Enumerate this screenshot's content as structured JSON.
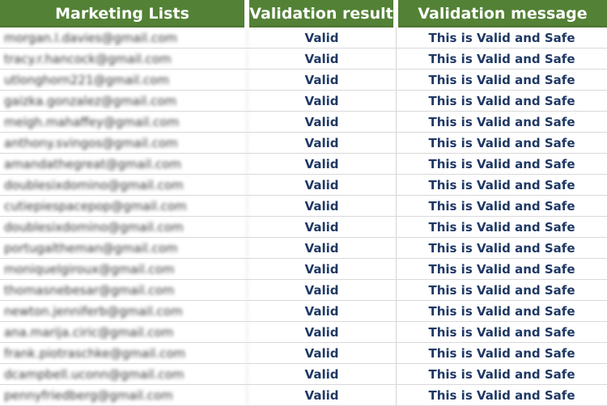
{
  "header": {
    "columns": [
      "Marketing Lists",
      "Validation result",
      "Validation message"
    ]
  },
  "colors": {
    "header_bg": "#538135",
    "header_text": "#FFFFFF",
    "value_text": "#1F3864",
    "email_text": "#3A3A3A",
    "gridline": "#D9D9D9"
  },
  "table": {
    "rows": [
      {
        "email": "morgan.l.davies@gmail.com",
        "result": "Valid",
        "message": "This is Valid and Safe"
      },
      {
        "email": "tracy.r.hancock@gmail.com",
        "result": "Valid",
        "message": "This is Valid and Safe"
      },
      {
        "email": "utlonghorn221@gmail.com",
        "result": "Valid",
        "message": "This is Valid and Safe"
      },
      {
        "email": "gaizka.gonzalez@gmail.com",
        "result": "Valid",
        "message": "This is Valid and Safe"
      },
      {
        "email": "meigh.mahaffey@gmail.com",
        "result": "Valid",
        "message": "This is Valid and Safe"
      },
      {
        "email": "anthony.svingos@gmail.com",
        "result": "Valid",
        "message": "This is Valid and Safe"
      },
      {
        "email": "amandathegreat@gmail.com",
        "result": "Valid",
        "message": "This is Valid and Safe"
      },
      {
        "email": "doublesixdomino@gmail.com",
        "result": "Valid",
        "message": "This is Valid and Safe"
      },
      {
        "email": "cutiepiespacepop@gmail.com",
        "result": "Valid",
        "message": "This is Valid and Safe"
      },
      {
        "email": "doublesixdomino@gmail.com",
        "result": "Valid",
        "message": "This is Valid and Safe"
      },
      {
        "email": "portugaltheman@gmail.com",
        "result": "Valid",
        "message": "This is Valid and Safe"
      },
      {
        "email": "moniquelgiroux@gmail.com",
        "result": "Valid",
        "message": "This is Valid and Safe"
      },
      {
        "email": "thomasnebesar@gmail.com",
        "result": "Valid",
        "message": "This is Valid and Safe"
      },
      {
        "email": "newton.jenniferb@gmail.com",
        "result": "Valid",
        "message": "This is Valid and Safe"
      },
      {
        "email": "ana.marija.ciric@gmail.com",
        "result": "Valid",
        "message": "This is Valid and Safe"
      },
      {
        "email": "frank.piotraschke@gmail.com",
        "result": "Valid",
        "message": "This is Valid and Safe"
      },
      {
        "email": "dcampbell.uconn@gmail.com",
        "result": "Valid",
        "message": "This is Valid and Safe"
      },
      {
        "email": "pennyfriedberg@gmail.com",
        "result": "Valid",
        "message": "This is Valid and Safe"
      }
    ]
  }
}
